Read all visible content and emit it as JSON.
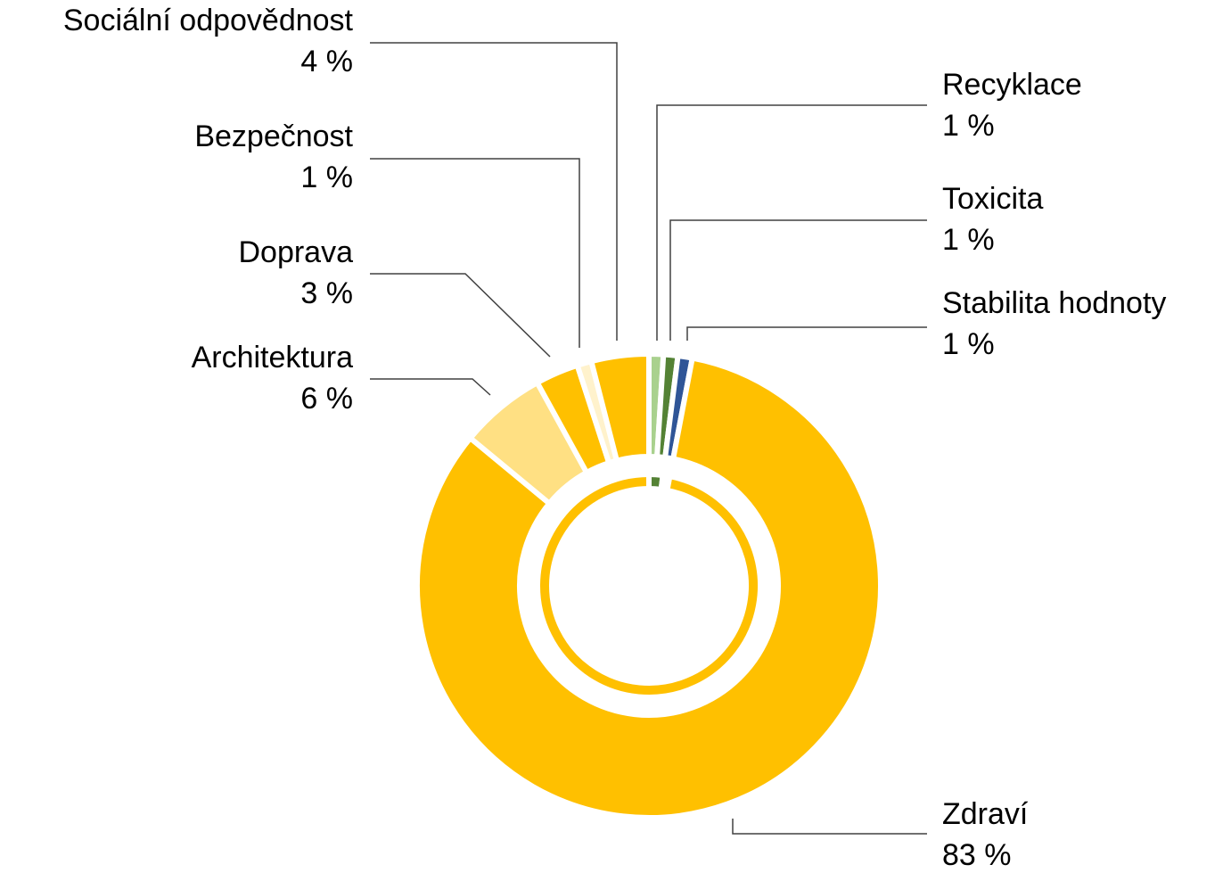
{
  "chart_data": {
    "type": "donut",
    "series": [
      {
        "categories": [
          "Recyklace",
          "Toxicita",
          "Stabilita hodnoty",
          "Zdraví",
          "Architektura",
          "Doprava",
          "Bezpečnost",
          "Sociální odpovědnost"
        ],
        "values": [
          1,
          1,
          1,
          83,
          6,
          3,
          1,
          4
        ],
        "value_labels": [
          "1 %",
          "1 %",
          "1 %",
          "83 %",
          "6 %",
          "3 %",
          "1 %",
          "4 %"
        ],
        "colors": [
          "#a9d18e",
          "#548235",
          "#2f5597",
          "#ffc000",
          "#ffe083",
          "#ffc000",
          "#fff2cc",
          "#ffc000"
        ]
      },
      {
        "values": [
          2,
          1,
          97
        ],
        "colors": [
          "#548235",
          "#ffffff",
          "#ffc000"
        ]
      }
    ]
  }
}
